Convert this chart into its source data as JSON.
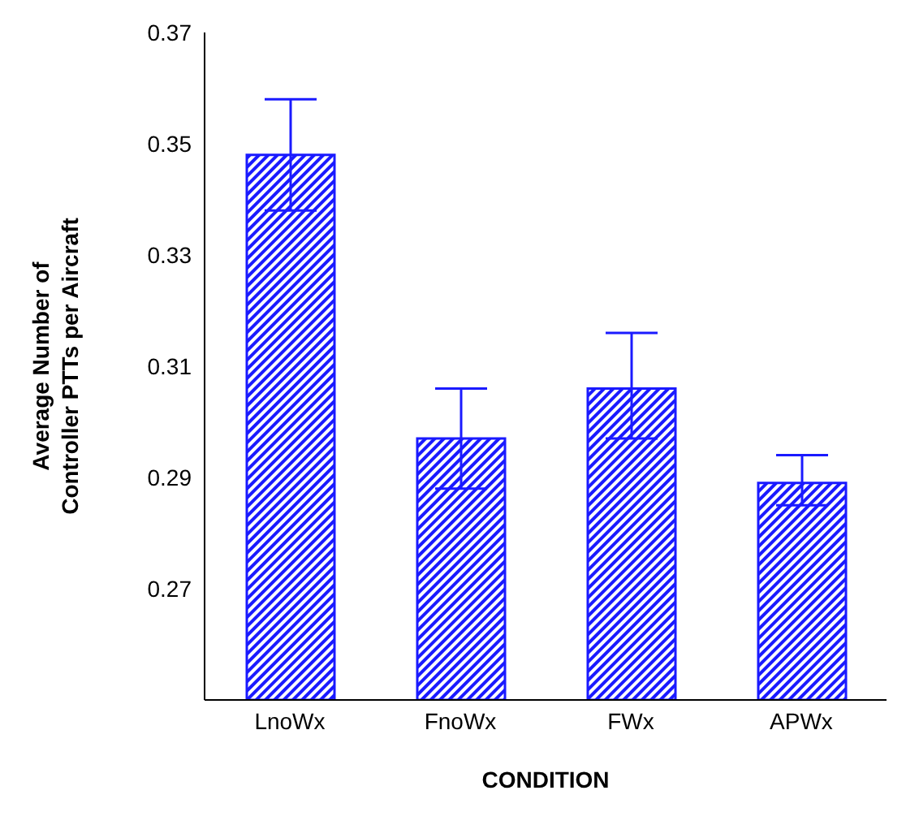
{
  "chart_data": {
    "type": "bar",
    "xlabel": "CONDITION",
    "ylabel": "Average Number of Controller PTTs per Aircraft",
    "categories": [
      "LnoWx",
      "FnoWx",
      "FWx",
      "APWx"
    ],
    "series": [
      {
        "color": "#1a1aff",
        "values": [
          0.348,
          0.297,
          0.306,
          0.289
        ],
        "errors": [
          [
            0.338,
            0.358
          ],
          [
            0.288,
            0.306
          ],
          [
            0.297,
            0.316
          ],
          [
            0.285,
            0.294
          ]
        ]
      }
    ],
    "ylim": [
      0.25,
      0.37
    ],
    "yticks": [
      0.27,
      0.29,
      0.31,
      0.33,
      0.35,
      0.37
    ],
    "grid": false,
    "legend": false
  }
}
